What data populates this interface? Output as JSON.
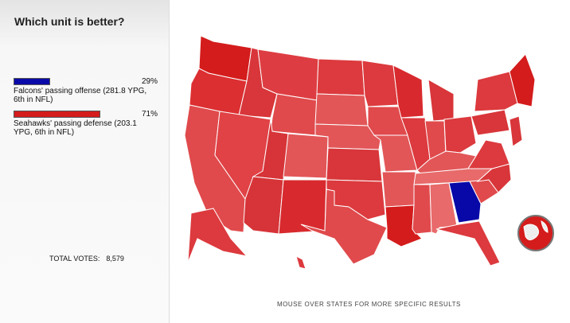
{
  "title": "Which unit is better?",
  "options": [
    {
      "label": "Falcons' passing offense (281.8 YPG, 6th in NFL)",
      "percent": {
        "value": 29,
        "label": "29%"
      },
      "color": "#0a0aa8"
    },
    {
      "label": "Seahawks' passing defense (203.1 YPG, 6th in NFL)",
      "percent": {
        "value": 71,
        "label": "71%"
      },
      "color": "#d41c1c"
    }
  ],
  "total_votes": {
    "label": "TOTAL VOTES:",
    "value": "8,579"
  },
  "footer": "MOUSE OVER STATES FOR MORE SPECIFIC RESULTS"
}
